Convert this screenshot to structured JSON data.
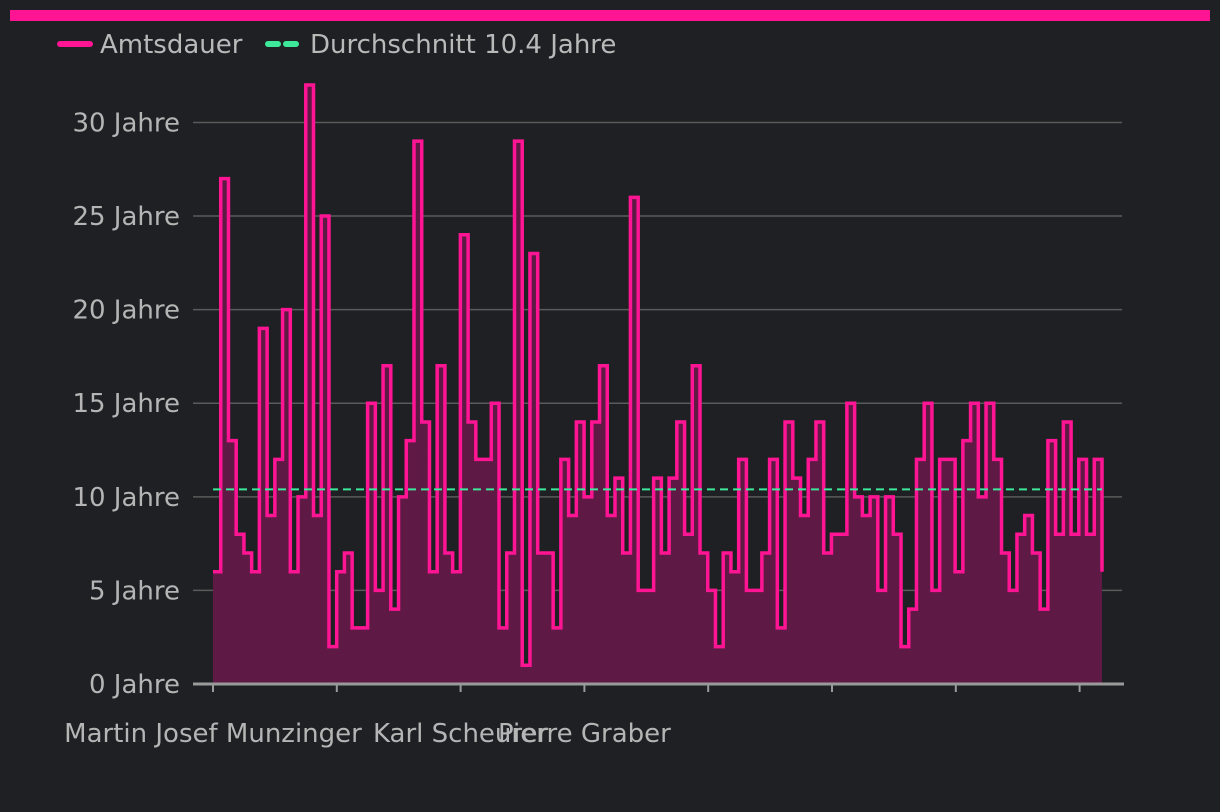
{
  "colors": {
    "background": "#1f2023",
    "accent": "#ff1493",
    "area_fill": "#5e1944",
    "average_line": "#3ee89a",
    "grid": "#5a5a5a",
    "axis": "#9a9a9a",
    "text": "#b5b5b5"
  },
  "chart_data": {
    "type": "area",
    "step": true,
    "legend": {
      "placement": "top-left",
      "entries": [
        {
          "label": "Amtsdauer",
          "style": "solid",
          "color": "#ff1493"
        },
        {
          "label": "Durchschnitt 10.4 Jahre",
          "style": "dashed",
          "color": "#3ee89a"
        }
      ]
    },
    "y_unit": "Jahre",
    "y_ticks": [
      {
        "value": 0,
        "label": "0 Jahre"
      },
      {
        "value": 5,
        "label": "5 Jahre"
      },
      {
        "value": 10,
        "label": "10 Jahre"
      },
      {
        "value": 15,
        "label": "15 Jahre"
      },
      {
        "value": 20,
        "label": "20 Jahre"
      },
      {
        "value": 25,
        "label": "25 Jahre"
      },
      {
        "value": 30,
        "label": "30 Jahre"
      }
    ],
    "ylim": [
      0,
      32
    ],
    "grid": true,
    "average": {
      "value": 10.4,
      "label": "Durchschnitt 10.4 Jahre"
    },
    "x_tick_labels": [
      {
        "index": 0,
        "label": "Martin Josef Munzinger"
      },
      {
        "index": 32,
        "label": "Karl Scheurer"
      },
      {
        "index": 48,
        "label": "Pierre Graber"
      }
    ],
    "x_tick_marks": [
      0,
      16,
      32,
      48,
      64,
      80,
      96,
      112
    ],
    "series": [
      {
        "name": "Amtsdauer",
        "values": [
          6,
          27,
          13,
          8,
          7,
          6,
          19,
          9,
          12,
          20,
          6,
          10,
          32,
          9,
          25,
          2,
          6,
          7,
          3,
          3,
          15,
          5,
          17,
          4,
          10,
          13,
          29,
          14,
          6,
          17,
          7,
          6,
          24,
          14,
          12,
          12,
          15,
          3,
          7,
          29,
          1,
          23,
          7,
          7,
          3,
          12,
          9,
          14,
          10,
          14,
          17,
          9,
          11,
          7,
          26,
          5,
          5,
          11,
          7,
          11,
          14,
          8,
          17,
          7,
          5,
          2,
          7,
          6,
          12,
          5,
          5,
          7,
          12,
          3,
          14,
          11,
          9,
          12,
          14,
          7,
          8,
          8,
          15,
          10,
          9,
          10,
          5,
          10,
          8,
          2,
          4,
          12,
          15,
          5,
          12,
          12,
          6,
          13,
          15,
          10,
          15,
          12,
          7,
          5,
          8,
          9,
          7,
          4,
          13,
          8,
          14,
          8,
          12,
          8,
          12,
          6
        ]
      }
    ]
  }
}
